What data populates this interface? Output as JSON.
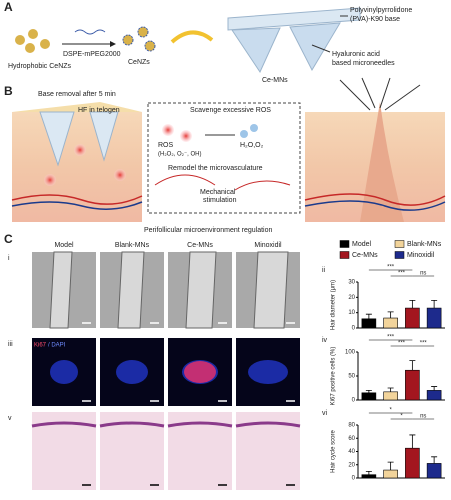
{
  "panel_labels": [
    "A",
    "B",
    "C"
  ],
  "panel_a": {
    "hydrophobic": "Hydrophobic CeNZs",
    "reagent": "DSPE-mPEG2000",
    "cenzs": "CeNZs",
    "ce_mns": "Ce-MNs",
    "base": "Polyvinylpyrrolidone",
    "base2": "(PVA)-K90 base",
    "needles": "Hyaluronic acid",
    "needles2": "based microneedles"
  },
  "panel_b": {
    "removal": "Base removal after 5 min",
    "telogen": "HF in telogen",
    "scavenge": "Scavenge excessive ROS",
    "ros": "ROS",
    "ros_species": "(H₂O₂, O₂⁻, OH)",
    "products": "H₂O,O₂",
    "remodel": "Remodel the microvasculature",
    "mech": "Mechanical",
    "mech2": "stimulation",
    "caption": "Perifollicular microenvironment regulation"
  },
  "panel_c": {
    "columns": [
      "Model",
      "Blank-MNs",
      "Ce-MNs",
      "Minoxidil"
    ],
    "row_labels": [
      "i",
      "iii",
      "v"
    ],
    "stain": [
      "Ki67",
      "/ DAPI"
    ],
    "chart_labels": [
      "ii",
      "iv",
      "vi"
    ]
  },
  "chart_data": [
    {
      "type": "bar",
      "y_label": "Hair diameter (μm)",
      "categories": [
        "Model",
        "Blank-MNs",
        "Ce-MNs",
        "Minoxidil"
      ],
      "colors": [
        "#000000",
        "#f2d49b",
        "#a3161f",
        "#1d2a8c"
      ],
      "values": [
        6,
        6.5,
        13,
        13
      ],
      "errors": [
        3,
        4,
        5,
        5
      ],
      "ylim": [
        0,
        30
      ],
      "yticks": [
        0,
        10,
        20,
        30
      ],
      "significance": [
        "***",
        "***",
        "ns"
      ]
    },
    {
      "type": "bar",
      "y_label": "Ki67 positive cells (%)",
      "categories": [
        "Model",
        "Blank-MNs",
        "Ce-MNs",
        "Minoxidil"
      ],
      "colors": [
        "#000000",
        "#f2d49b",
        "#a3161f",
        "#1d2a8c"
      ],
      "values": [
        15,
        17,
        62,
        20
      ],
      "errors": [
        5,
        8,
        20,
        8
      ],
      "ylim": [
        0,
        100
      ],
      "yticks": [
        0,
        50,
        100
      ],
      "significance": [
        "***",
        "***",
        "***"
      ]
    },
    {
      "type": "bar",
      "y_label": "Hair cycle score",
      "categories": [
        "Model",
        "Blank-MNs",
        "Ce-MNs",
        "Minoxidil"
      ],
      "colors": [
        "#000000",
        "#f2d49b",
        "#a3161f",
        "#1d2a8c"
      ],
      "values": [
        5,
        12,
        45,
        22
      ],
      "errors": [
        5,
        12,
        20,
        10
      ],
      "ylim": [
        0,
        80
      ],
      "yticks": [
        0,
        20,
        40,
        60,
        80
      ],
      "significance": [
        "*",
        "*",
        "ns"
      ]
    }
  ]
}
